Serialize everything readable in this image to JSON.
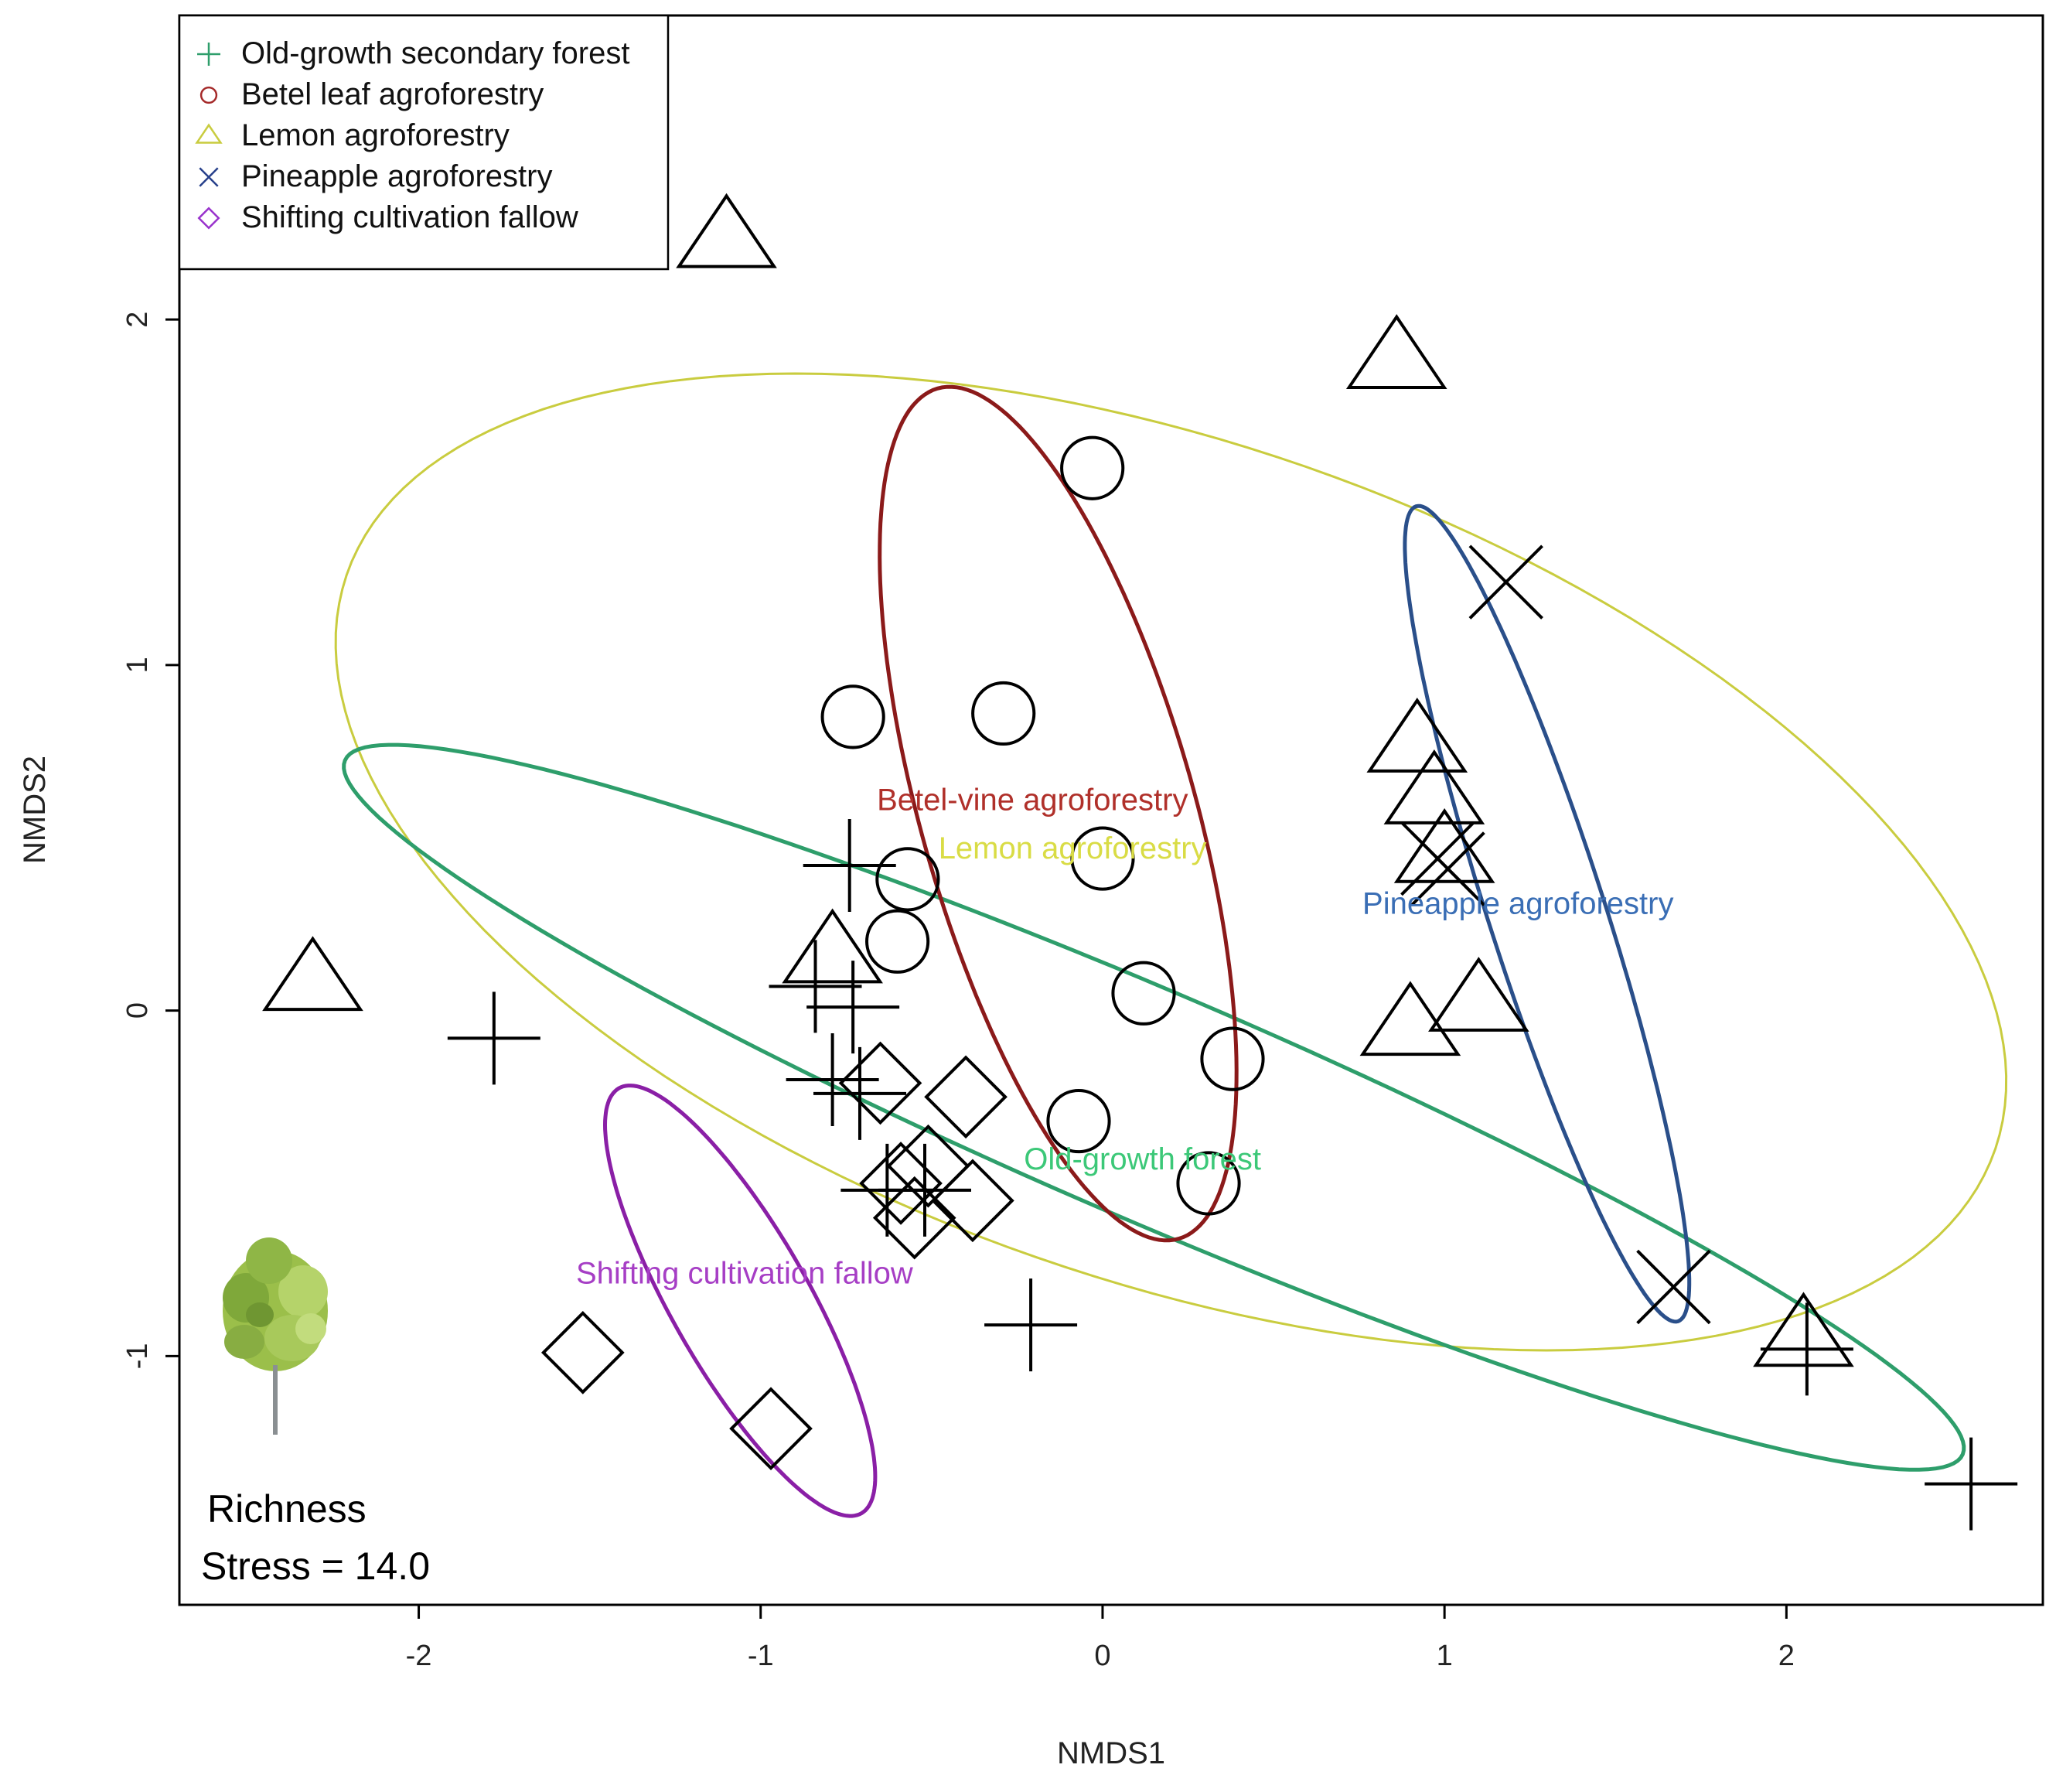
{
  "chart_data": {
    "type": "scatter",
    "title": "",
    "xlabel": "NMDS1",
    "ylabel": "NMDS2",
    "xlim": [
      -2.7,
      2.75
    ],
    "ylim": [
      -1.72,
      2.88
    ],
    "xticks": [
      -2,
      -1,
      0,
      1,
      2
    ],
    "yticks": [
      -1,
      0,
      1,
      2
    ],
    "legend_position": "top-left",
    "legend": [
      {
        "label": "Old-growth secondary forest",
        "symbol": "plus",
        "color": "#2E9E6B"
      },
      {
        "label": "Betel leaf agroforestry",
        "symbol": "circle",
        "color": "#A52A2A"
      },
      {
        "label": "Lemon  agroforestry",
        "symbol": "triangle",
        "color": "#C9CC3F"
      },
      {
        "label": "Pineapple agroforestry",
        "symbol": "cross",
        "color": "#27408B"
      },
      {
        "label": "Shifting  cultivation fallow",
        "symbol": "diamond",
        "color": "#9932CC"
      }
    ],
    "series": [
      {
        "name": "Old-growth secondary forest",
        "symbol": "plus",
        "points": [
          [
            -1.78,
            -0.08
          ],
          [
            -0.74,
            0.42
          ],
          [
            -0.84,
            0.07
          ],
          [
            -0.73,
            0.01
          ],
          [
            -0.79,
            -0.2
          ],
          [
            -0.71,
            -0.24
          ],
          [
            -0.63,
            -0.52
          ],
          [
            -0.52,
            -0.52
          ],
          [
            -0.21,
            -0.91
          ],
          [
            2.06,
            -0.98
          ],
          [
            2.54,
            -1.37
          ]
        ]
      },
      {
        "name": "Betel leaf agroforestry",
        "symbol": "circle",
        "points": [
          [
            -0.03,
            1.57
          ],
          [
            -0.73,
            0.85
          ],
          [
            -0.29,
            0.86
          ],
          [
            0.0,
            0.44
          ],
          [
            -0.57,
            0.38
          ],
          [
            -0.6,
            0.2
          ],
          [
            0.12,
            0.05
          ],
          [
            0.38,
            -0.14
          ],
          [
            -0.07,
            -0.32
          ],
          [
            0.31,
            -0.5
          ]
        ]
      },
      {
        "name": "Lemon  agroforestry",
        "symbol": "triangle",
        "points": [
          [
            -1.1,
            2.23
          ],
          [
            0.86,
            1.88
          ],
          [
            0.92,
            0.77
          ],
          [
            0.97,
            0.62
          ],
          [
            1.0,
            0.45
          ],
          [
            -2.31,
            0.08
          ],
          [
            -0.79,
            0.16
          ],
          [
            1.1,
            0.02
          ],
          [
            0.9,
            -0.05
          ],
          [
            2.05,
            -0.95
          ]
        ]
      },
      {
        "name": "Pineapple agroforestry",
        "symbol": "cross",
        "points": [
          [
            1.18,
            1.24
          ],
          [
            0.98,
            0.44
          ],
          [
            1.01,
            0.41
          ],
          [
            1.67,
            -0.8
          ]
        ]
      },
      {
        "name": "Shifting  cultivation fallow",
        "symbol": "diamond",
        "points": [
          [
            -0.65,
            -0.21
          ],
          [
            -0.4,
            -0.25
          ],
          [
            -0.51,
            -0.45
          ],
          [
            -0.59,
            -0.5
          ],
          [
            -0.38,
            -0.55
          ],
          [
            -0.55,
            -0.6
          ],
          [
            -1.52,
            -0.99
          ],
          [
            -0.97,
            -1.21
          ]
        ]
      }
    ],
    "ellipses": [
      {
        "series": "Lemon  agroforestry",
        "color": "#C9CC3F",
        "cx": 0.2,
        "cy": 0.43,
        "rx": 2.55,
        "ry": 1.21,
        "angle_deg": -19
      },
      {
        "series": "Old-growth secondary forest",
        "color": "#2E9E6B",
        "cx": 0.15,
        "cy": -0.28,
        "rx": 2.57,
        "ry": 0.33,
        "angle_deg": -23
      },
      {
        "series": "Betel leaf agroforestry",
        "color": "#8B1A1A",
        "cx": -0.13,
        "cy": 0.57,
        "rx": 1.28,
        "ry": 0.4,
        "angle_deg": -74
      },
      {
        "series": "Pineapple agroforestry",
        "color": "#2A4F8A",
        "cx": 1.3,
        "cy": 0.28,
        "rx": 1.24,
        "ry": 0.17,
        "angle_deg": -72
      },
      {
        "series": "Shifting  cultivation fallow",
        "color": "#8A1FA6",
        "cx": -1.06,
        "cy": -0.84,
        "rx": 0.71,
        "ry": 0.2,
        "angle_deg": -60
      }
    ],
    "group_labels": [
      {
        "text": "Betel-vine  agroforestry",
        "x": -0.66,
        "y": 0.58,
        "color": "#B0302A"
      },
      {
        "text": "Lemon  agroforestry",
        "x": -0.48,
        "y": 0.44,
        "color": "#D9DC45"
      },
      {
        "text": "Pineapple  agroforestry",
        "x": 0.76,
        "y": 0.28,
        "color": "#3A6EB5"
      },
      {
        "text": "Old-growth  forest",
        "x": -0.23,
        "y": -0.46,
        "color": "#3CC878"
      },
      {
        "text": "Shifting  cultivation  fallow",
        "x": -1.54,
        "y": -0.79,
        "color": "#A63EC5"
      }
    ],
    "annotation_lines": [
      "Richness",
      "Stress = 14.0"
    ]
  }
}
